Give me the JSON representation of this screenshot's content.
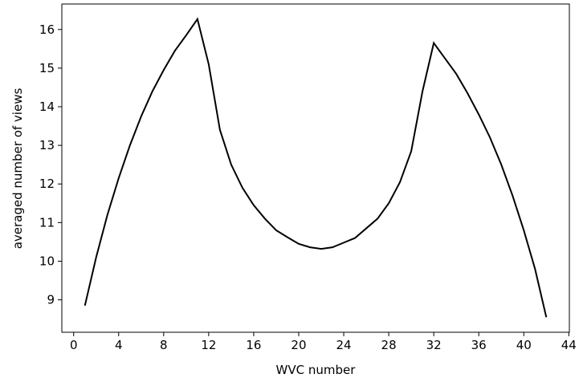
{
  "chart_data": {
    "type": "line",
    "xlabel": "WVC number",
    "ylabel": "averaged number of views",
    "x": [
      1,
      2,
      3,
      4,
      5,
      6,
      7,
      8,
      9,
      10,
      11,
      12,
      13,
      14,
      15,
      16,
      17,
      18,
      19,
      20,
      21,
      22,
      23,
      24,
      25,
      26,
      27,
      28,
      29,
      30,
      31,
      32,
      33,
      34,
      35,
      36,
      37,
      38,
      39,
      40,
      41,
      42
    ],
    "series": [
      {
        "color": "#000000",
        "values": [
          8.85,
          10.1,
          11.2,
          12.15,
          13.0,
          13.75,
          14.4,
          14.95,
          15.45,
          15.85,
          16.27,
          15.1,
          13.4,
          12.5,
          11.9,
          11.45,
          11.1,
          10.8,
          10.62,
          10.45,
          10.36,
          10.32,
          10.36,
          10.48,
          10.6,
          10.85,
          11.1,
          11.5,
          12.05,
          12.85,
          14.4,
          15.65,
          15.25,
          14.85,
          14.35,
          13.8,
          13.2,
          12.5,
          11.7,
          10.8,
          9.8,
          8.55
        ]
      }
    ],
    "xlim": [
      -1.05,
      44.05
    ],
    "xticks": [
      0,
      4,
      8,
      12,
      16,
      20,
      24,
      28,
      32,
      36,
      40,
      44
    ],
    "ylim": [
      8.16,
      16.66
    ],
    "yticks": [
      9,
      10,
      11,
      12,
      13,
      14,
      15,
      16
    ],
    "grid": false
  }
}
